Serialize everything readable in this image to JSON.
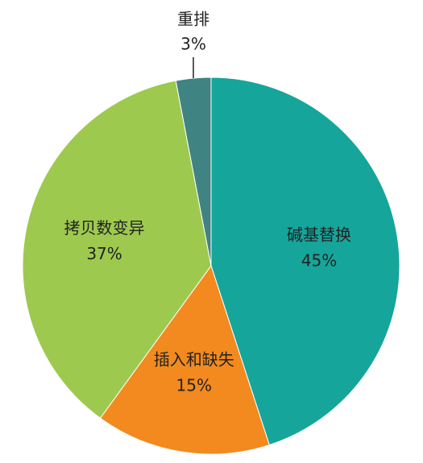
{
  "chart_data": {
    "type": "pie",
    "categories": [
      "碱基替换",
      "插入和缺失",
      "拷贝数变异",
      "重排"
    ],
    "values": [
      45,
      15,
      37,
      3
    ],
    "value_labels": [
      "45%",
      "15%",
      "37%",
      "3%"
    ],
    "colors": [
      "#16a59a",
      "#f28a1f",
      "#9ec94f",
      "#3f8482"
    ]
  }
}
